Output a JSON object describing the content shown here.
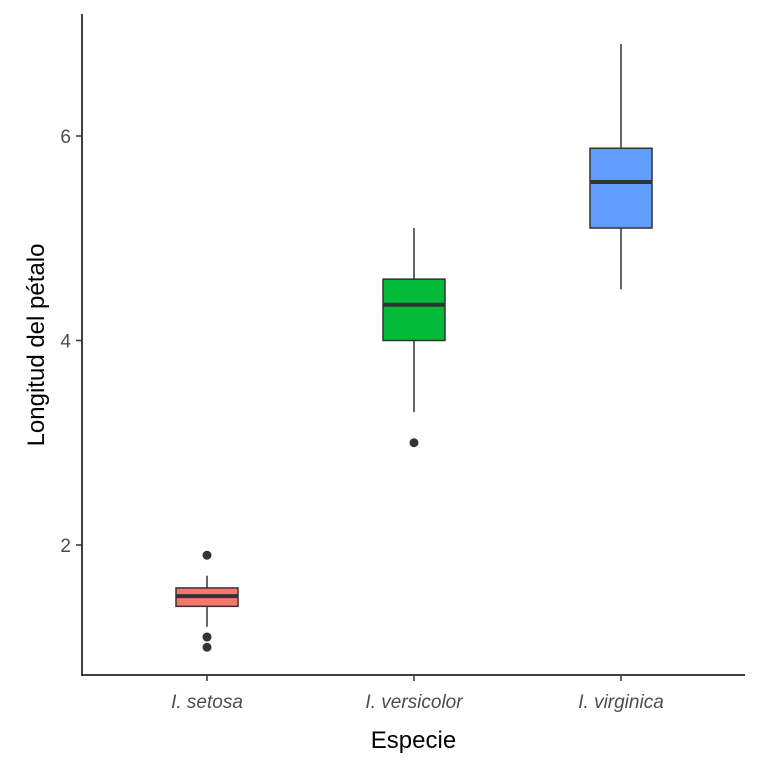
{
  "chart_data": {
    "type": "box",
    "xlabel": "Especie",
    "ylabel": "Longitud del pétalo",
    "ylim": [
      0.7,
      7.2
    ],
    "yticks": [
      2,
      4,
      6
    ],
    "grid": false,
    "legend": "none",
    "categories": [
      "I. setosa",
      "I. versicolor",
      "I. virginica"
    ],
    "boxes": [
      {
        "category": "I. setosa",
        "color": "#F8766D",
        "whisker_low": 1.2,
        "q1": 1.4,
        "median": 1.5,
        "q3": 1.58,
        "whisker_high": 1.7,
        "outliers": [
          1.0,
          1.1,
          1.9
        ]
      },
      {
        "category": "I. versicolor",
        "color": "#00BA38",
        "whisker_low": 3.3,
        "q1": 4.0,
        "median": 4.35,
        "q3": 4.6,
        "whisker_high": 5.1,
        "outliers": [
          3.0
        ]
      },
      {
        "category": "I. virginica",
        "color": "#619CFF",
        "whisker_low": 4.5,
        "q1": 5.1,
        "median": 5.55,
        "q3": 5.88,
        "whisker_high": 6.9,
        "outliers": []
      }
    ]
  }
}
